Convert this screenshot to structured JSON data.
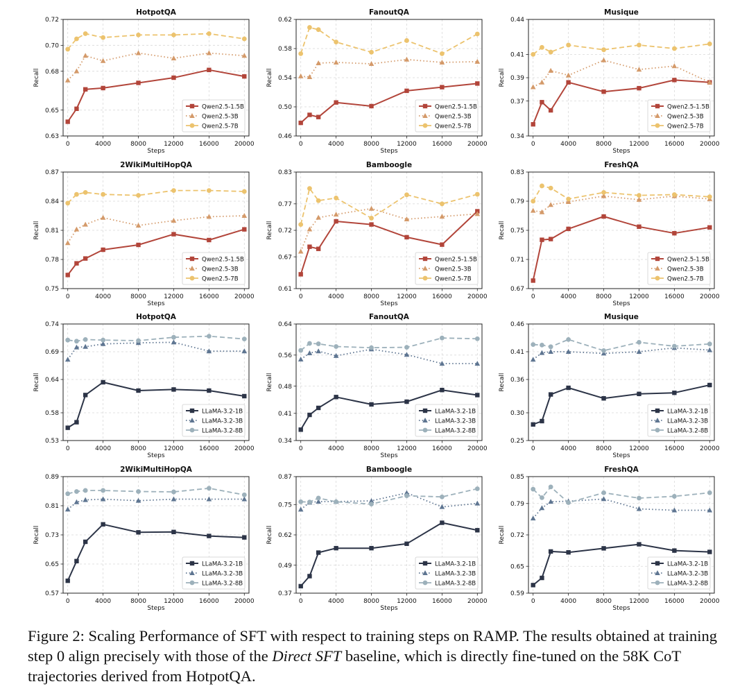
{
  "chart_data": [
    {
      "type": "line",
      "title": "HotpotQA",
      "xlabel": "Steps",
      "ylabel": "Recall",
      "x": [
        0,
        1000,
        2000,
        4000,
        8000,
        12000,
        16000,
        20000
      ],
      "xticks": [
        0,
        4000,
        8000,
        12000,
        16000,
        20000
      ],
      "ylim": [
        0.63,
        0.72
      ],
      "yticks": [
        "0.63",
        "0.65",
        "0.68",
        "0.70",
        "0.72"
      ],
      "grid": true,
      "legend": "lower-right",
      "series": [
        {
          "name": "Qwen2.5-1.5B",
          "values": [
            0.641,
            0.651,
            0.666,
            0.667,
            0.671,
            0.675,
            0.681,
            0.676
          ]
        },
        {
          "name": "Qwen2.5-3B",
          "values": [
            0.673,
            0.68,
            0.692,
            0.688,
            0.694,
            0.69,
            0.694,
            0.692
          ]
        },
        {
          "name": "Qwen2.5-7B",
          "values": [
            0.697,
            0.705,
            0.709,
            0.706,
            0.708,
            0.708,
            0.709,
            0.705
          ]
        }
      ]
    },
    {
      "type": "line",
      "title": "FanoutQA",
      "xlabel": "Steps",
      "ylabel": "Recall",
      "x": [
        0,
        1000,
        2000,
        4000,
        8000,
        12000,
        16000,
        20000
      ],
      "xticks": [
        0,
        4000,
        8000,
        12000,
        16000,
        20000
      ],
      "ylim": [
        0.46,
        0.62
      ],
      "yticks": [
        "0.46",
        "0.50",
        "0.54",
        "0.58",
        "0.62"
      ],
      "grid": true,
      "legend": "lower-right",
      "series": [
        {
          "name": "Qwen2.5-1.5B",
          "values": [
            0.478,
            0.489,
            0.486,
            0.506,
            0.501,
            0.522,
            0.527,
            0.532
          ]
        },
        {
          "name": "Qwen2.5-3B",
          "values": [
            0.542,
            0.541,
            0.56,
            0.561,
            0.559,
            0.565,
            0.561,
            0.562
          ]
        },
        {
          "name": "Qwen2.5-7B",
          "values": [
            0.573,
            0.609,
            0.606,
            0.589,
            0.575,
            0.591,
            0.573,
            0.6
          ]
        }
      ]
    },
    {
      "type": "line",
      "title": "Musique",
      "xlabel": "Steps",
      "ylabel": "Recall",
      "x": [
        0,
        1000,
        2000,
        4000,
        8000,
        12000,
        16000,
        20000
      ],
      "xticks": [
        0,
        4000,
        8000,
        12000,
        16000,
        20000
      ],
      "ylim": [
        0.34,
        0.44
      ],
      "yticks": [
        "0.34",
        "0.37",
        "0.39",
        "0.41",
        "0.44"
      ],
      "grid": true,
      "legend": "lower-right",
      "series": [
        {
          "name": "Qwen2.5-1.5B",
          "values": [
            0.35,
            0.369,
            0.362,
            0.386,
            0.378,
            0.381,
            0.388,
            0.386
          ]
        },
        {
          "name": "Qwen2.5-3B",
          "values": [
            0.382,
            0.386,
            0.396,
            0.392,
            0.405,
            0.397,
            0.4,
            0.386
          ]
        },
        {
          "name": "Qwen2.5-7B",
          "values": [
            0.41,
            0.416,
            0.412,
            0.418,
            0.414,
            0.418,
            0.415,
            0.419
          ]
        }
      ]
    },
    {
      "type": "line",
      "title": "2WikiMultiHopQA",
      "xlabel": "Steps",
      "ylabel": "Recall",
      "x": [
        0,
        1000,
        2000,
        4000,
        8000,
        12000,
        16000,
        20000
      ],
      "xticks": [
        0,
        4000,
        8000,
        12000,
        16000,
        20000
      ],
      "ylim": [
        0.75,
        0.87
      ],
      "yticks": [
        "0.75",
        "0.78",
        "0.81",
        "0.84",
        "0.87"
      ],
      "grid": true,
      "legend": "lower-right",
      "series": [
        {
          "name": "Qwen2.5-1.5B",
          "values": [
            0.764,
            0.776,
            0.781,
            0.79,
            0.795,
            0.806,
            0.8,
            0.811
          ]
        },
        {
          "name": "Qwen2.5-3B",
          "values": [
            0.797,
            0.811,
            0.816,
            0.823,
            0.815,
            0.82,
            0.824,
            0.825
          ]
        },
        {
          "name": "Qwen2.5-7B",
          "values": [
            0.838,
            0.847,
            0.849,
            0.847,
            0.846,
            0.851,
            0.851,
            0.85
          ]
        }
      ]
    },
    {
      "type": "line",
      "title": "Bamboogle",
      "xlabel": "Steps",
      "ylabel": "Recall",
      "x": [
        0,
        1000,
        2000,
        4000,
        8000,
        12000,
        16000,
        20000
      ],
      "xticks": [
        0,
        4000,
        8000,
        12000,
        16000,
        20000
      ],
      "ylim": [
        0.61,
        0.83
      ],
      "yticks": [
        "0.61",
        "0.67",
        "0.72",
        "0.77",
        "0.83"
      ],
      "grid": true,
      "legend": "lower-right",
      "series": [
        {
          "name": "Qwen2.5-1.5B",
          "values": [
            0.637,
            0.689,
            0.685,
            0.737,
            0.731,
            0.707,
            0.693,
            0.756
          ]
        },
        {
          "name": "Qwen2.5-3B",
          "values": [
            0.68,
            0.722,
            0.744,
            0.75,
            0.761,
            0.741,
            0.746,
            0.751
          ]
        },
        {
          "name": "Qwen2.5-7B",
          "values": [
            0.731,
            0.799,
            0.776,
            0.781,
            0.743,
            0.787,
            0.77,
            0.788
          ]
        }
      ]
    },
    {
      "type": "line",
      "title": "FreshQA",
      "xlabel": "Steps",
      "ylabel": "Recall",
      "x": [
        0,
        1000,
        2000,
        4000,
        8000,
        12000,
        16000,
        20000
      ],
      "xticks": [
        0,
        4000,
        8000,
        12000,
        16000,
        20000
      ],
      "ylim": [
        0.67,
        0.83
      ],
      "yticks": [
        "0.67",
        "0.71",
        "0.75",
        "0.79",
        "0.83"
      ],
      "grid": true,
      "legend": "lower-right",
      "series": [
        {
          "name": "Qwen2.5-1.5B",
          "values": [
            0.681,
            0.737,
            0.738,
            0.752,
            0.769,
            0.755,
            0.746,
            0.754
          ]
        },
        {
          "name": "Qwen2.5-3B",
          "values": [
            0.777,
            0.775,
            0.785,
            0.789,
            0.797,
            0.792,
            0.797,
            0.793
          ]
        },
        {
          "name": "Qwen2.5-7B",
          "values": [
            0.79,
            0.811,
            0.808,
            0.793,
            0.802,
            0.798,
            0.799,
            0.796
          ]
        }
      ]
    },
    {
      "type": "line",
      "title": "HotpotQA",
      "xlabel": "Steps",
      "ylabel": "Recall",
      "x": [
        0,
        1000,
        2000,
        4000,
        8000,
        12000,
        16000,
        20000
      ],
      "xticks": [
        0,
        4000,
        8000,
        12000,
        16000,
        20000
      ],
      "ylim": [
        0.53,
        0.74
      ],
      "yticks": [
        "0.53",
        "0.58",
        "0.64",
        "0.69",
        "0.74"
      ],
      "grid": true,
      "legend": "lower-right",
      "series": [
        {
          "name": "LLaMA-3.2-1B",
          "values": [
            0.553,
            0.563,
            0.612,
            0.635,
            0.62,
            0.622,
            0.62,
            0.61
          ]
        },
        {
          "name": "LLaMA-3.2-3B",
          "values": [
            0.676,
            0.698,
            0.699,
            0.704,
            0.706,
            0.707,
            0.691,
            0.691
          ]
        },
        {
          "name": "LLaMA-3.2-8B",
          "values": [
            0.711,
            0.709,
            0.712,
            0.711,
            0.71,
            0.716,
            0.718,
            0.713
          ]
        }
      ]
    },
    {
      "type": "line",
      "title": "FanoutQA",
      "xlabel": "Steps",
      "ylabel": "Recall",
      "x": [
        0,
        1000,
        2000,
        4000,
        8000,
        12000,
        16000,
        20000
      ],
      "xticks": [
        0,
        4000,
        8000,
        12000,
        16000,
        20000
      ],
      "ylim": [
        0.34,
        0.64
      ],
      "yticks": [
        "0.34",
        "0.41",
        "0.48",
        "0.56",
        "0.64"
      ],
      "grid": true,
      "legend": "lower-right",
      "series": [
        {
          "name": "LLaMA-3.2-1B",
          "values": [
            0.368,
            0.406,
            0.424,
            0.452,
            0.433,
            0.44,
            0.47,
            0.457
          ]
        },
        {
          "name": "LLaMA-3.2-3B",
          "values": [
            0.549,
            0.565,
            0.57,
            0.558,
            0.575,
            0.561,
            0.538,
            0.538
          ]
        },
        {
          "name": "LLaMA-3.2-8B",
          "values": [
            0.572,
            0.59,
            0.589,
            0.582,
            0.579,
            0.58,
            0.604,
            0.602
          ]
        }
      ]
    },
    {
      "type": "line",
      "title": "Musique",
      "xlabel": "Steps",
      "ylabel": "Recall",
      "x": [
        0,
        1000,
        2000,
        4000,
        8000,
        12000,
        16000,
        20000
      ],
      "xticks": [
        0,
        4000,
        8000,
        12000,
        16000,
        20000
      ],
      "ylim": [
        0.25,
        0.46
      ],
      "yticks": [
        "0.25",
        "0.30",
        "0.36",
        "0.41",
        "0.46"
      ],
      "grid": true,
      "legend": "lower-right",
      "series": [
        {
          "name": "LLaMA-3.2-1B",
          "values": [
            0.279,
            0.285,
            0.333,
            0.345,
            0.326,
            0.334,
            0.336,
            0.35
          ]
        },
        {
          "name": "LLaMA-3.2-3B",
          "values": [
            0.396,
            0.408,
            0.41,
            0.41,
            0.407,
            0.41,
            0.417,
            0.413
          ]
        },
        {
          "name": "LLaMA-3.2-8B",
          "values": [
            0.423,
            0.422,
            0.419,
            0.432,
            0.412,
            0.427,
            0.42,
            0.424
          ]
        }
      ]
    },
    {
      "type": "line",
      "title": "2WikiMultiHopQA",
      "xlabel": "Steps",
      "ylabel": "Recall",
      "x": [
        0,
        1000,
        2000,
        4000,
        8000,
        12000,
        16000,
        20000
      ],
      "xticks": [
        0,
        4000,
        8000,
        12000,
        16000,
        20000
      ],
      "ylim": [
        0.57,
        0.89
      ],
      "yticks": [
        "0.57",
        "0.65",
        "0.73",
        "0.81",
        "0.89"
      ],
      "grid": true,
      "legend": "lower-right",
      "series": [
        {
          "name": "LLaMA-3.2-1B",
          "values": [
            0.604,
            0.658,
            0.711,
            0.759,
            0.737,
            0.738,
            0.727,
            0.723
          ]
        },
        {
          "name": "LLaMA-3.2-3B",
          "values": [
            0.8,
            0.82,
            0.826,
            0.828,
            0.824,
            0.828,
            0.828,
            0.828
          ]
        },
        {
          "name": "LLaMA-3.2-8B",
          "values": [
            0.843,
            0.849,
            0.852,
            0.852,
            0.849,
            0.848,
            0.858,
            0.84
          ]
        }
      ]
    },
    {
      "type": "line",
      "title": "Bamboogle",
      "xlabel": "Steps",
      "ylabel": "Recall",
      "x": [
        0,
        1000,
        2000,
        4000,
        8000,
        12000,
        16000,
        20000
      ],
      "xticks": [
        0,
        4000,
        8000,
        12000,
        16000,
        20000
      ],
      "ylim": [
        0.37,
        0.87
      ],
      "yticks": [
        "0.37",
        "0.49",
        "0.62",
        "0.75",
        "0.87"
      ],
      "grid": true,
      "legend": "lower-right",
      "series": [
        {
          "name": "LLaMA-3.2-1B",
          "values": [
            0.4,
            0.443,
            0.544,
            0.563,
            0.563,
            0.582,
            0.672,
            0.64
          ]
        },
        {
          "name": "LLaMA-3.2-3B",
          "values": [
            0.729,
            0.759,
            0.763,
            0.763,
            0.766,
            0.8,
            0.74,
            0.755
          ]
        },
        {
          "name": "LLaMA-3.2-8B",
          "values": [
            0.762,
            0.761,
            0.778,
            0.762,
            0.752,
            0.788,
            0.783,
            0.818
          ]
        }
      ]
    },
    {
      "type": "line",
      "title": "FreshQA",
      "xlabel": "Steps",
      "ylabel": "Recall",
      "x": [
        0,
        1000,
        2000,
        4000,
        8000,
        12000,
        16000,
        20000
      ],
      "xticks": [
        0,
        4000,
        8000,
        12000,
        16000,
        20000
      ],
      "ylim": [
        0.59,
        0.85
      ],
      "yticks": [
        "0.59",
        "0.65",
        "0.72",
        "0.79",
        "0.85"
      ],
      "grid": true,
      "legend": "lower-right",
      "series": [
        {
          "name": "LLaMA-3.2-1B",
          "values": [
            0.608,
            0.624,
            0.683,
            0.681,
            0.69,
            0.699,
            0.685,
            0.682
          ]
        },
        {
          "name": "LLaMA-3.2-3B",
          "values": [
            0.757,
            0.78,
            0.794,
            0.795,
            0.8,
            0.778,
            0.775,
            0.775
          ]
        },
        {
          "name": "LLaMA-3.2-8B",
          "values": [
            0.822,
            0.803,
            0.827,
            0.792,
            0.814,
            0.802,
            0.806,
            0.814
          ]
        }
      ]
    }
  ],
  "colors": {
    "qwen": [
      "#b2453a",
      "#d49a6a",
      "#ecc36e"
    ],
    "llama": [
      "#2c3447",
      "#5e7591",
      "#9db1bb"
    ],
    "grid": "#d9d9d9",
    "text": "#111111"
  },
  "caption": {
    "prefix": "Figure 2: Scaling Performance of SFT with respect to training steps on RAMP. The results obtained at training step 0 align precisely with those of the ",
    "italic": "Direct SFT",
    "suffix": " baseline, which is directly fine-tuned on the 58K CoT trajectories derived from HotpotQA."
  }
}
